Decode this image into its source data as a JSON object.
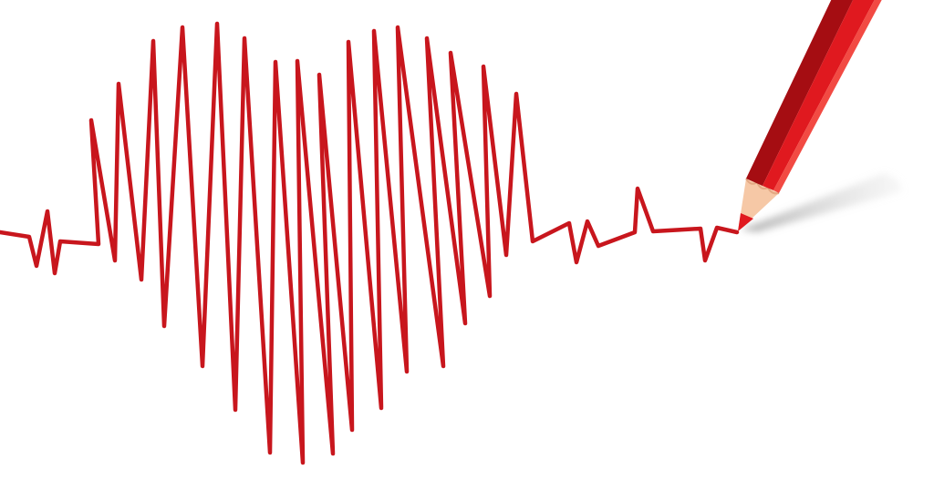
{
  "illustration": {
    "line_color": "#c8161d",
    "pencil_body_color": "#e0191f",
    "pencil_dark_color": "#a50d12",
    "pencil_light_color": "#f24a43",
    "pencil_wood_color": "#f6c8a6",
    "shadow_color": "#bdbdbd",
    "icons": [
      "heartbeat-line-icon",
      "red-pencil-icon"
    ]
  }
}
